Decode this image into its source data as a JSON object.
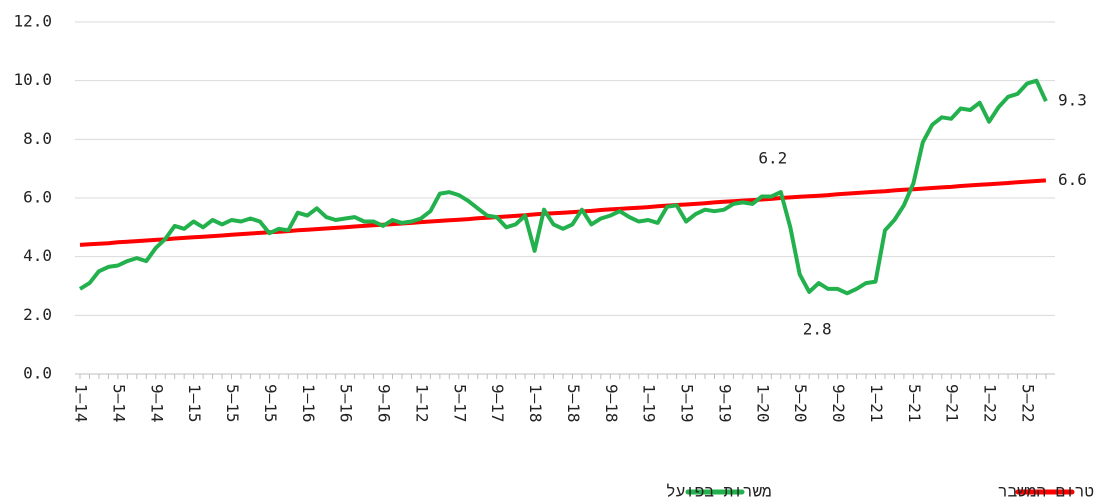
{
  "chart_data": {
    "type": "line",
    "categories": [
      "1–14",
      null,
      null,
      null,
      "5–14",
      null,
      null,
      null,
      "9–14",
      null,
      null,
      null,
      "1–15",
      null,
      null,
      null,
      "5–15",
      null,
      null,
      null,
      "9–15",
      null,
      null,
      null,
      "1–16",
      null,
      null,
      null,
      "5–16",
      null,
      null,
      null,
      "9–16",
      null,
      null,
      null,
      "1–12",
      null,
      null,
      null,
      "5–17",
      null,
      null,
      null,
      "9–17",
      null,
      null,
      null,
      "1–18",
      null,
      null,
      null,
      "5–18",
      null,
      null,
      null,
      "9–18",
      null,
      null,
      null,
      "1–19",
      null,
      null,
      null,
      "5–19",
      null,
      null,
      null,
      "9–19",
      null,
      null,
      null,
      "1–20",
      null,
      null,
      null,
      "5–20",
      null,
      null,
      null,
      "9–20",
      null,
      null,
      null,
      "1–21",
      null,
      null,
      null,
      "5–21",
      null,
      null,
      null,
      "9–21",
      null,
      null,
      null,
      "1–22",
      null,
      null,
      null,
      "5–22",
      null,
      null
    ],
    "series": [
      {
        "name": "משרות בפועל",
        "color": "#22b14c",
        "values": [
          2.9,
          3.1,
          3.5,
          3.65,
          3.7,
          3.85,
          3.95,
          3.85,
          4.3,
          4.6,
          5.05,
          4.95,
          5.2,
          5.0,
          5.25,
          5.1,
          5.25,
          5.2,
          5.3,
          5.2,
          4.8,
          4.95,
          4.9,
          5.5,
          5.4,
          5.65,
          5.35,
          5.25,
          5.3,
          5.35,
          5.2,
          5.2,
          5.05,
          5.25,
          5.15,
          5.2,
          5.3,
          5.55,
          6.15,
          6.2,
          6.1,
          5.9,
          5.65,
          5.4,
          5.35,
          5.0,
          5.1,
          5.4,
          4.2,
          5.6,
          5.1,
          4.95,
          5.1,
          5.6,
          5.1,
          5.3,
          5.4,
          5.55,
          5.35,
          5.2,
          5.25,
          5.15,
          5.7,
          5.75,
          5.2,
          5.45,
          5.6,
          5.55,
          5.6,
          5.8,
          5.85,
          5.8,
          6.05,
          6.05,
          6.2,
          5.0,
          3.4,
          2.8,
          3.1,
          2.9,
          2.9,
          2.75,
          2.9,
          3.1,
          3.15,
          4.9,
          5.25,
          5.75,
          6.5,
          7.9,
          8.5,
          8.75,
          8.7,
          9.05,
          9.0,
          9.25,
          8.6,
          9.1,
          9.45,
          9.55,
          9.9,
          10.0,
          9.3
        ]
      },
      {
        "name": "מגמת טרום המשבר",
        "color": "#ff0000",
        "values": [
          4.4,
          4.42,
          4.44,
          4.46,
          4.49,
          4.51,
          4.53,
          4.55,
          4.57,
          4.59,
          4.62,
          4.64,
          4.66,
          4.68,
          4.7,
          4.72,
          4.75,
          4.77,
          4.79,
          4.81,
          4.83,
          4.85,
          4.87,
          4.9,
          4.92,
          4.94,
          4.96,
          4.98,
          5.0,
          5.03,
          5.05,
          5.07,
          5.09,
          5.11,
          5.13,
          5.15,
          5.18,
          5.2,
          5.22,
          5.24,
          5.26,
          5.28,
          5.31,
          5.33,
          5.35,
          5.37,
          5.39,
          5.41,
          5.44,
          5.46,
          5.48,
          5.5,
          5.52,
          5.54,
          5.56,
          5.59,
          5.61,
          5.63,
          5.65,
          5.67,
          5.69,
          5.72,
          5.74,
          5.76,
          5.78,
          5.8,
          5.82,
          5.85,
          5.87,
          5.89,
          5.91,
          5.93,
          5.95,
          5.97,
          6.0,
          6.02,
          6.04,
          6.06,
          6.08,
          6.1,
          6.13,
          6.15,
          6.17,
          6.19,
          6.21,
          6.23,
          6.26,
          6.28,
          6.3,
          6.32,
          6.34,
          6.36,
          6.38,
          6.41,
          6.43,
          6.45,
          6.47,
          6.49,
          6.51,
          6.54,
          6.56,
          6.58,
          6.6
        ]
      }
    ],
    "ylim": [
      0,
      12
    ],
    "yticks": [
      {
        "value": 0,
        "label": "0.0"
      },
      {
        "value": 2,
        "label": "2.0"
      },
      {
        "value": 4,
        "label": "4.0"
      },
      {
        "value": 6,
        "label": "6.0"
      },
      {
        "value": 8,
        "label": "8.0"
      },
      {
        "value": 10,
        "label": "10.0"
      },
      {
        "value": 12,
        "label": "12.0"
      }
    ],
    "grid": true
  }
}
